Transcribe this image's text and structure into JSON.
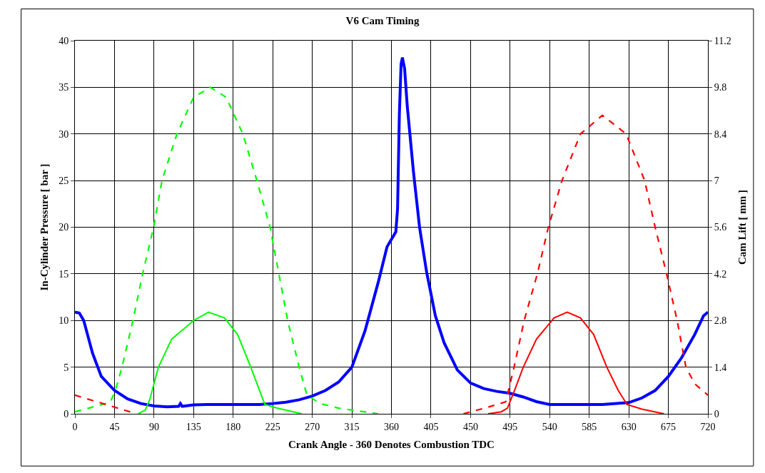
{
  "chart_data": {
    "type": "line",
    "title": "V6 Cam Timing",
    "xlabel": "Crank Angle - 360 Denotes Combustion TDC",
    "ylabel": "In-Cylinder Pressure [ bar ]",
    "y2label": "Cam Lift [ mm ]",
    "xlim": [
      0,
      720
    ],
    "xticks": [
      0,
      45,
      90,
      135,
      180,
      225,
      270,
      315,
      360,
      405,
      450,
      495,
      540,
      585,
      630,
      675,
      720
    ],
    "ylim": [
      0,
      40
    ],
    "yticks": [
      0,
      5,
      10,
      15,
      20,
      25,
      30,
      35,
      40
    ],
    "y2lim": [
      0,
      11.2
    ],
    "y2ticks": [
      0,
      1.4,
      2.8,
      4.2,
      5.6,
      7,
      8.4,
      9.8,
      11.2
    ],
    "grid": true,
    "marker": "none",
    "series": [
      {
        "color": "#00ff00",
        "axis": "y2",
        "line_style": "dashed",
        "x": [
          0,
          20,
          40,
          46,
          53.5,
          66,
          77,
          89.5,
          99,
          116,
          135,
          154,
          172,
          191,
          207,
          222,
          232,
          242,
          255,
          264,
          280,
          300,
          345
        ],
        "values": [
          0.06,
          0.2,
          0.34,
          0.7,
          1.4,
          2.8,
          4.2,
          5.6,
          7,
          8.4,
          9.5,
          9.8,
          9.5,
          8.4,
          7,
          5.6,
          4.2,
          2.8,
          1.4,
          0.55,
          0.3,
          0.17,
          0
        ]
      },
      {
        "color": "#00ff00",
        "axis": "y2",
        "line_style": "solid",
        "x": [
          72,
          80,
          85,
          95,
          110,
          135,
          152,
          170,
          185,
          200,
          210,
          216,
          230,
          258
        ],
        "values": [
          0,
          0.11,
          0.42,
          1.4,
          2.24,
          2.8,
          3.05,
          2.88,
          2.38,
          1.4,
          0.7,
          0.28,
          0.17,
          0
        ]
      },
      {
        "color": "#ff0000",
        "axis": "y2",
        "line_style": "dashed",
        "x": [
          0,
          35,
          70,
          300,
          442,
          470,
          490,
          499.5,
          511,
          526,
          538.5,
          554,
          575,
          600,
          627,
          648,
          660,
          673,
          685,
          695,
          705,
          720
        ],
        "values": [
          0.56,
          0.28,
          0,
          null,
          0,
          0.2,
          0.36,
          1.4,
          2.8,
          4.2,
          5.6,
          7,
          8.4,
          8.96,
          8.4,
          7,
          5.6,
          4.2,
          2.8,
          1.4,
          0.9,
          0.56
        ]
      },
      {
        "color": "#ff0000",
        "axis": "y2",
        "line_style": "solid",
        "x": [
          470,
          485,
          492,
          500,
          510,
          525,
          545,
          560,
          575,
          590,
          605,
          618,
          628,
          645,
          670
        ],
        "values": [
          0,
          0.06,
          0.17,
          0.7,
          1.4,
          2.24,
          2.88,
          3.05,
          2.88,
          2.38,
          1.4,
          0.7,
          0.28,
          0.14,
          0
        ]
      },
      {
        "color": "#0000ff",
        "line_style": "solid",
        "x": [
          0,
          5,
          10,
          20,
          30,
          45,
          60,
          75,
          90,
          105,
          118,
          120,
          122,
          135,
          150,
          180,
          210,
          225,
          240,
          255,
          270,
          285,
          300,
          315,
          330,
          345,
          355,
          360,
          365,
          367,
          369,
          371,
          372.5,
          375,
          378,
          385,
          392,
          400,
          410,
          420,
          435,
          450,
          465,
          480,
          495,
          510,
          525,
          540,
          555,
          570,
          600,
          630,
          645,
          660,
          675,
          690,
          705,
          715,
          720
        ],
        "values": [
          10.9,
          10.8,
          10,
          6.5,
          4,
          2.5,
          1.6,
          1.1,
          0.85,
          0.75,
          0.8,
          1.1,
          0.8,
          0.95,
          1,
          1,
          1,
          1.1,
          1.25,
          1.5,
          1.9,
          2.5,
          3.4,
          5,
          8.9,
          14.1,
          17.9,
          18.7,
          19.5,
          22,
          32,
          37.5,
          38.2,
          37,
          33,
          26,
          20,
          15.2,
          10.5,
          7.6,
          4.7,
          3.3,
          2.7,
          2.4,
          2.2,
          1.8,
          1.3,
          1,
          1,
          1,
          1,
          1.2,
          1.7,
          2.5,
          4,
          6,
          8.5,
          10.5,
          10.9
        ]
      }
    ]
  }
}
